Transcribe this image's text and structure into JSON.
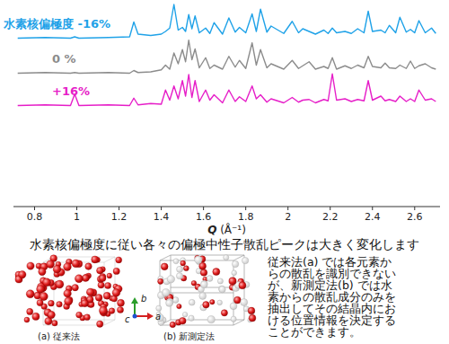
{
  "chart_data": {
    "type": "line",
    "x_label": "Q (Å⁻¹)",
    "x": [
      0.72,
      0.85,
      0.97,
      0.99,
      1.01,
      1.15,
      1.25,
      1.27,
      1.29,
      1.35,
      1.4,
      1.42,
      1.44,
      1.46,
      1.48,
      1.5,
      1.515,
      1.53,
      1.545,
      1.56,
      1.58,
      1.61,
      1.63,
      1.65,
      1.69,
      1.72,
      1.75,
      1.77,
      1.8,
      1.83,
      1.85,
      1.87,
      1.9,
      1.92,
      1.98,
      2.02,
      2.05,
      2.07,
      2.1,
      2.13,
      2.17,
      2.19,
      2.21,
      2.23,
      2.27,
      2.3,
      2.33,
      2.36,
      2.38,
      2.4,
      2.44,
      2.46,
      2.48,
      2.51,
      2.53,
      2.56,
      2.58,
      2.6,
      2.62,
      2.65,
      2.68,
      2.7
    ],
    "series": [
      {
        "name": "水素核偏極度 -16%",
        "color": "#1fa2e8",
        "values": [
          25.0,
          25.1,
          25.0,
          25.2,
          25.0,
          25.1,
          25.2,
          27.4,
          25.6,
          25.4,
          25.6,
          26.0,
          26.5,
          30.0,
          26.2,
          26.6,
          26.0,
          28.5,
          26.4,
          28.3,
          25.8,
          26.5,
          25.7,
          27.3,
          25.6,
          28.0,
          25.9,
          26.6,
          25.8,
          28.6,
          26.0,
          29.3,
          25.9,
          26.8,
          25.7,
          27.5,
          25.8,
          26.4,
          26.0,
          25.6,
          26.2,
          25.7,
          26.5,
          25.8,
          26.0,
          25.7,
          26.4,
          25.8,
          29.0,
          26.0,
          26.2,
          25.8,
          26.9,
          25.8,
          28.1,
          25.9,
          26.3,
          25.8,
          27.6,
          25.8,
          26.5,
          25.7
        ]
      },
      {
        "name": "0 %",
        "color": "#8c8c8c",
        "values": [
          19.8,
          19.9,
          19.8,
          19.9,
          19.8,
          19.9,
          19.8,
          20.2,
          19.9,
          20.0,
          20.3,
          21.0,
          20.4,
          22.8,
          21.2,
          23.3,
          21.5,
          24.7,
          21.8,
          23.4,
          20.6,
          22.1,
          20.5,
          21.0,
          20.4,
          22.3,
          20.7,
          21.7,
          20.5,
          24.3,
          21.0,
          23.3,
          20.6,
          21.2,
          20.4,
          21.7,
          20.5,
          20.9,
          21.5,
          20.4,
          20.8,
          20.5,
          22.1,
          20.4,
          20.9,
          20.5,
          21.0,
          20.6,
          22.3,
          20.8,
          20.6,
          21.3,
          20.6,
          20.5,
          21.0,
          20.5,
          21.6,
          20.5,
          20.9,
          21.2,
          20.6,
          20.4
        ]
      },
      {
        "name": "+16%",
        "color": "#e61ec8",
        "values": [
          15.0,
          15.1,
          15.0,
          16.7,
          15.0,
          15.1,
          15.0,
          16.1,
          15.1,
          15.3,
          15.2,
          17.3,
          15.8,
          17.9,
          16.0,
          18.7,
          16.4,
          19.6,
          16.2,
          18.7,
          15.6,
          17.3,
          15.8,
          16.6,
          15.4,
          17.3,
          15.6,
          16.3,
          15.6,
          17.9,
          16.0,
          16.6,
          15.5,
          16.0,
          15.4,
          16.2,
          15.5,
          15.8,
          15.9,
          15.4,
          15.9,
          15.7,
          19.7,
          15.8,
          16.0,
          15.6,
          15.9,
          15.7,
          18.7,
          15.8,
          16.4,
          15.7,
          15.9,
          15.6,
          16.4,
          15.6,
          16.0,
          15.6,
          17.3,
          15.8,
          16.0,
          15.6
        ]
      }
    ],
    "xlim": [
      0.7,
      2.72
    ],
    "ylim": [
      0,
      30
    ],
    "xticks": [
      0.8,
      1,
      1.2,
      1.4,
      1.6,
      1.8,
      2,
      2.2,
      2.4,
      2.6
    ],
    "tick_labels": "x",
    "grid": false
  },
  "caption": "水素核偏極度に従い各々の偏極中性子散乱ピークは大きく変化します",
  "panels": [
    {
      "label": "(a) 従来法"
    },
    {
      "label": "(b) 新測定法"
    }
  ],
  "axis_triad": [
    "a",
    "b",
    "c"
  ],
  "description_lines": [
    "従来法(a) では各元素か",
    "らの散乱を識別できない",
    "が、新測定法(b) では水",
    "素からの散乱成分のみを",
    "抽出してその結晶内にお",
    "ける位置情報を決定する",
    "ことができます。"
  ]
}
